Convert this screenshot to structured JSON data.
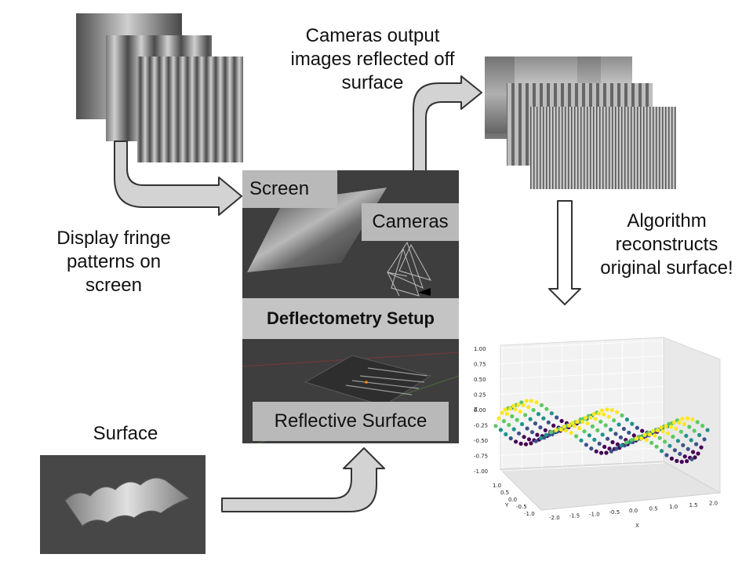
{
  "labels": {
    "cameras_output": [
      "Cameras output",
      "images reflected off",
      "surface"
    ],
    "display_fringe": [
      "Display fringe",
      "patterns on",
      "screen"
    ],
    "algorithm": [
      "Algorithm",
      "reconstructs",
      "original surface!"
    ],
    "surface": "Surface"
  },
  "setup": {
    "screen": "Screen",
    "cameras": "Cameras",
    "title": "Deflectometry Setup",
    "reflective_surface": "Reflective Surface"
  },
  "plot": {
    "type": "scatter",
    "z_ticks": [
      "1.00",
      "0.75",
      "0.50",
      "0.25",
      "0.00",
      "-0.25",
      "-0.50",
      "-0.75",
      "-1.00"
    ],
    "x_ticks": [
      "-2.0",
      "-1.5",
      "-1.0",
      "-0.5",
      "0.0",
      "0.5",
      "1.0",
      "1.5",
      "2.0"
    ],
    "y_ticks": [
      "1.0",
      "0.5",
      "0.0",
      "-0.5",
      "-1.0"
    ],
    "xlabel": "X",
    "ylabel": "Y",
    "zlabel": "Z"
  },
  "colors": {
    "arrow_fill": "#d3d3d3",
    "arrow_stroke": "#333333",
    "setup_bg": "#3e3e3e"
  }
}
